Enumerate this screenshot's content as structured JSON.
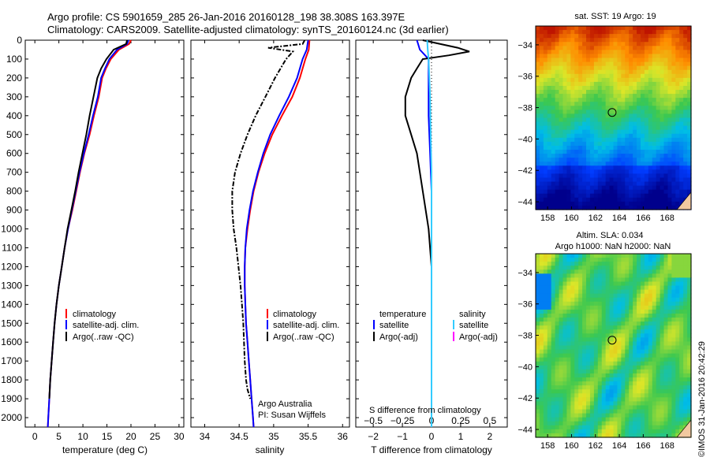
{
  "title": {
    "line1": "Argo profile: CS 5901659_285 26-Jan-2016 20160128_198 38.308S 163.397E",
    "line2": "Climatology: CARS2009. Satellite-adjusted climatology: synTS_20160124.nc (3d earlier)"
  },
  "colors": {
    "climatology": "#ff0000",
    "satellite": "#0000ff",
    "argo": "#000000",
    "s_satellite": "#33ccff",
    "s_argo": "#ff00ff"
  },
  "chart_data": [
    {
      "id": "temperature",
      "type": "line",
      "xlabel": "temperature (deg C)",
      "ylabel": "",
      "xlim": [
        -2,
        31
      ],
      "ylim": [
        2050,
        0
      ],
      "xticks": [
        0,
        5,
        10,
        15,
        20,
        25,
        30
      ],
      "xtick_labels": [
        "0",
        "5",
        "10",
        "15",
        "20",
        "25",
        "30"
      ],
      "yticks": [
        0,
        100,
        200,
        300,
        400,
        500,
        600,
        700,
        800,
        900,
        1000,
        1100,
        1200,
        1300,
        1400,
        1500,
        1600,
        1700,
        1800,
        1900,
        2000
      ],
      "ytick_labels": [
        "0",
        "100",
        "200",
        "300",
        "400",
        "500",
        "600",
        "700",
        "800",
        "900",
        "1000",
        "1100",
        "1200",
        "1300",
        "1400",
        "1500",
        "1600",
        "1700",
        "1800",
        "1900",
        "2000"
      ],
      "legend": [
        "climatology",
        "satellite-adj. clim.",
        "Argo(..raw -QC)"
      ],
      "legend_position": "lower-left",
      "series": [
        {
          "name": "climatology",
          "color_key": "climatology",
          "points": [
            [
              20.0,
              0
            ],
            [
              19.6,
              20
            ],
            [
              17.5,
              50
            ],
            [
              15.8,
              100
            ],
            [
              14.8,
              150
            ],
            [
              14.0,
              200
            ],
            [
              13.3,
              300
            ],
            [
              12.3,
              400
            ],
            [
              11.4,
              500
            ],
            [
              10.3,
              600
            ],
            [
              9.4,
              700
            ],
            [
              8.6,
              800
            ],
            [
              7.8,
              900
            ],
            [
              6.9,
              1000
            ],
            [
              6.2,
              1100
            ],
            [
              5.6,
              1200
            ],
            [
              5.0,
              1300
            ],
            [
              4.5,
              1400
            ],
            [
              4.1,
              1500
            ],
            [
              3.8,
              1600
            ],
            [
              3.5,
              1700
            ],
            [
              3.2,
              1800
            ],
            [
              3.0,
              1900
            ],
            [
              2.8,
              2000
            ],
            [
              2.7,
              2050
            ]
          ]
        },
        {
          "name": "satellite-adj. clim.",
          "color_key": "satellite",
          "points": [
            [
              19.5,
              0
            ],
            [
              19.2,
              20
            ],
            [
              17.1,
              50
            ],
            [
              15.5,
              100
            ],
            [
              14.6,
              150
            ],
            [
              13.8,
              200
            ],
            [
              13.1,
              300
            ],
            [
              12.1,
              400
            ],
            [
              11.2,
              500
            ],
            [
              10.2,
              600
            ],
            [
              9.3,
              700
            ],
            [
              8.5,
              800
            ],
            [
              7.7,
              900
            ],
            [
              6.9,
              1000
            ],
            [
              6.2,
              1100
            ],
            [
              5.6,
              1200
            ],
            [
              5.0,
              1300
            ],
            [
              4.5,
              1400
            ],
            [
              4.1,
              1500
            ],
            [
              3.8,
              1600
            ],
            [
              3.5,
              1700
            ],
            [
              3.2,
              1800
            ],
            [
              3.0,
              1900
            ],
            [
              2.8,
              2000
            ],
            [
              2.7,
              2050
            ]
          ]
        },
        {
          "name": "Argo(..raw -QC)",
          "color_key": "argo",
          "points": [
            [
              19.2,
              0
            ],
            [
              19.0,
              20
            ],
            [
              16.4,
              50
            ],
            [
              14.9,
              100
            ],
            [
              13.8,
              150
            ],
            [
              13.0,
              200
            ],
            [
              12.2,
              300
            ],
            [
              11.4,
              400
            ],
            [
              10.7,
              500
            ],
            [
              9.9,
              600
            ],
            [
              9.1,
              700
            ],
            [
              8.4,
              800
            ],
            [
              7.6,
              900
            ],
            [
              6.8,
              1000
            ],
            [
              6.2,
              1100
            ],
            [
              5.6,
              1200
            ],
            [
              5.0,
              1300
            ],
            [
              4.5,
              1400
            ],
            [
              4.1,
              1500
            ],
            [
              3.8,
              1600
            ],
            [
              3.5,
              1700
            ],
            [
              3.2,
              1800
            ],
            [
              3.0,
              1900
            ]
          ]
        }
      ]
    },
    {
      "id": "salinity",
      "type": "line",
      "xlabel": "salinity",
      "ylabel": "",
      "xlim": [
        33.8,
        36.1
      ],
      "ylim": [
        2050,
        0
      ],
      "xticks": [
        34,
        34.5,
        35,
        35.5,
        36
      ],
      "xtick_labels": [
        "34",
        "34.5",
        "35",
        "35.5",
        "36"
      ],
      "legend": [
        "climatology",
        "satellite-adj. clim.",
        "Argo(..raw -QC)"
      ],
      "legend_position": "lower-right",
      "annotations": [
        "Argo Australia",
        "PI: Susan Wijffels"
      ],
      "series": [
        {
          "name": "climatology",
          "color_key": "climatology",
          "points": [
            [
              35.52,
              0
            ],
            [
              35.51,
              50
            ],
            [
              35.46,
              100
            ],
            [
              35.38,
              200
            ],
            [
              35.27,
              300
            ],
            [
              35.12,
              400
            ],
            [
              34.98,
              500
            ],
            [
              34.87,
              600
            ],
            [
              34.78,
              700
            ],
            [
              34.71,
              800
            ],
            [
              34.66,
              900
            ],
            [
              34.62,
              1000
            ],
            [
              34.59,
              1100
            ],
            [
              34.58,
              1200
            ],
            [
              34.58,
              1300
            ],
            [
              34.59,
              1400
            ],
            [
              34.6,
              1500
            ],
            [
              34.62,
              1600
            ],
            [
              34.64,
              1700
            ],
            [
              34.66,
              1800
            ],
            [
              34.68,
              1900
            ],
            [
              34.7,
              2000
            ],
            [
              34.71,
              2050
            ]
          ]
        },
        {
          "name": "satellite-adj. clim.",
          "color_key": "satellite",
          "points": [
            [
              35.5,
              0
            ],
            [
              35.48,
              50
            ],
            [
              35.42,
              100
            ],
            [
              35.34,
              200
            ],
            [
              35.22,
              300
            ],
            [
              35.08,
              400
            ],
            [
              34.95,
              500
            ],
            [
              34.85,
              600
            ],
            [
              34.77,
              700
            ],
            [
              34.7,
              800
            ],
            [
              34.65,
              900
            ],
            [
              34.61,
              1000
            ],
            [
              34.59,
              1100
            ],
            [
              34.58,
              1200
            ],
            [
              34.58,
              1300
            ],
            [
              34.59,
              1400
            ],
            [
              34.6,
              1500
            ],
            [
              34.62,
              1600
            ],
            [
              34.64,
              1700
            ],
            [
              34.66,
              1800
            ],
            [
              34.68,
              1900
            ],
            [
              34.7,
              2000
            ],
            [
              34.71,
              2050
            ]
          ]
        },
        {
          "name": "Argo(..raw -QC)",
          "color_key": "argo",
          "points": [
            [
              35.45,
              0
            ],
            [
              35.42,
              20
            ],
            [
              34.92,
              40
            ],
            [
              35.28,
              60
            ],
            [
              35.18,
              100
            ],
            [
              35.02,
              200
            ],
            [
              34.88,
              300
            ],
            [
              34.74,
              400
            ],
            [
              34.62,
              500
            ],
            [
              34.52,
              600
            ],
            [
              34.44,
              700
            ],
            [
              34.4,
              800
            ],
            [
              34.4,
              900
            ],
            [
              34.42,
              1000
            ],
            [
              34.46,
              1100
            ],
            [
              34.49,
              1200
            ],
            [
              34.52,
              1300
            ],
            [
              34.54,
              1400
            ],
            [
              34.56,
              1500
            ],
            [
              34.57,
              1600
            ],
            [
              34.58,
              1700
            ],
            [
              34.6,
              1800
            ],
            [
              34.62,
              1850
            ],
            [
              34.66,
              1900
            ]
          ]
        }
      ]
    },
    {
      "id": "difference",
      "type": "line",
      "xlabel": "T difference from climatology",
      "xlabel_top": "S difference from climatology",
      "xlim": [
        -2.6,
        2.6
      ],
      "ylim": [
        2050,
        0
      ],
      "xticks": [
        -2,
        -1,
        0,
        1,
        2
      ],
      "xtick_labels": [
        "−2",
        "−1",
        "0",
        "1",
        "2"
      ],
      "xticks_top": [
        -0.5,
        -0.25,
        0,
        0.25,
        0.5
      ],
      "xtick_labels_top": [
        "−0.5",
        "−0.25",
        "0",
        "0.25",
        "0.5"
      ],
      "legend_temperature": [
        "temperature",
        "satellite",
        "Argo(-adj)"
      ],
      "legend_salinity": [
        "salinity",
        "satellite",
        "Argo(-adj)"
      ],
      "series": [
        {
          "name": "satellite",
          "group": "temperature",
          "color_key": "satellite",
          "points": [
            [
              -0.5,
              0
            ],
            [
              -0.4,
              50
            ],
            [
              -0.1,
              100
            ],
            [
              -0.1,
              200
            ],
            [
              -0.1,
              400
            ],
            [
              -0.05,
              600
            ],
            [
              0,
              800
            ],
            [
              0,
              1000
            ],
            [
              0,
              1200
            ],
            [
              0,
              1400
            ],
            [
              0,
              1600
            ],
            [
              0,
              1800
            ],
            [
              0,
              2050
            ]
          ]
        },
        {
          "name": "Argo(-adj)",
          "group": "temperature",
          "color_key": "argo",
          "points": [
            [
              -0.3,
              0
            ],
            [
              0.9,
              40
            ],
            [
              1.3,
              60
            ],
            [
              0.6,
              80
            ],
            [
              -0.3,
              100
            ],
            [
              -0.5,
              150
            ],
            [
              -0.7,
              200
            ],
            [
              -0.9,
              300
            ],
            [
              -0.9,
              400
            ],
            [
              -0.7,
              500
            ],
            [
              -0.5,
              600
            ],
            [
              -0.3,
              800
            ],
            [
              -0.1,
              1000
            ],
            [
              0,
              1200
            ],
            [
              0,
              1400
            ],
            [
              0,
              1600
            ],
            [
              0,
              1800
            ],
            [
              0,
              1900
            ]
          ]
        },
        {
          "name": "satellite",
          "group": "salinity",
          "color_key": "s_satellite",
          "points": [
            [
              -0.15,
              0
            ],
            [
              -0.13,
              50
            ],
            [
              -0.1,
              100
            ],
            [
              -0.05,
              300
            ],
            [
              -0.03,
              500
            ],
            [
              0,
              700
            ],
            [
              0,
              900
            ],
            [
              0,
              1200
            ],
            [
              0,
              1500
            ],
            [
              0,
              1800
            ],
            [
              0,
              2050
            ]
          ]
        }
      ]
    }
  ],
  "map_sst": {
    "title": "sat. SST: 19  Argo: 19",
    "xtick_labels": [
      "158",
      "160",
      "162",
      "164",
      "166",
      "168"
    ],
    "ytick_labels": [
      "−34",
      "−36",
      "−38",
      "−40",
      "−42",
      "−44"
    ],
    "marker": {
      "lon": 163.397,
      "lat": -38.308
    }
  },
  "map_sla": {
    "title_line1": "Altim. SLA: 0.034",
    "title_line2": "Argo h1000: NaN h2000: NaN",
    "xtick_labels": [
      "158",
      "160",
      "162",
      "164",
      "166",
      "168"
    ],
    "ytick_labels": [
      "−34",
      "−36",
      "−38",
      "−40",
      "−42",
      "−44"
    ],
    "marker": {
      "lon": 163.397,
      "lat": -38.308
    }
  },
  "stamp": "©IMOS 31-Jan-2016 20:42:29"
}
